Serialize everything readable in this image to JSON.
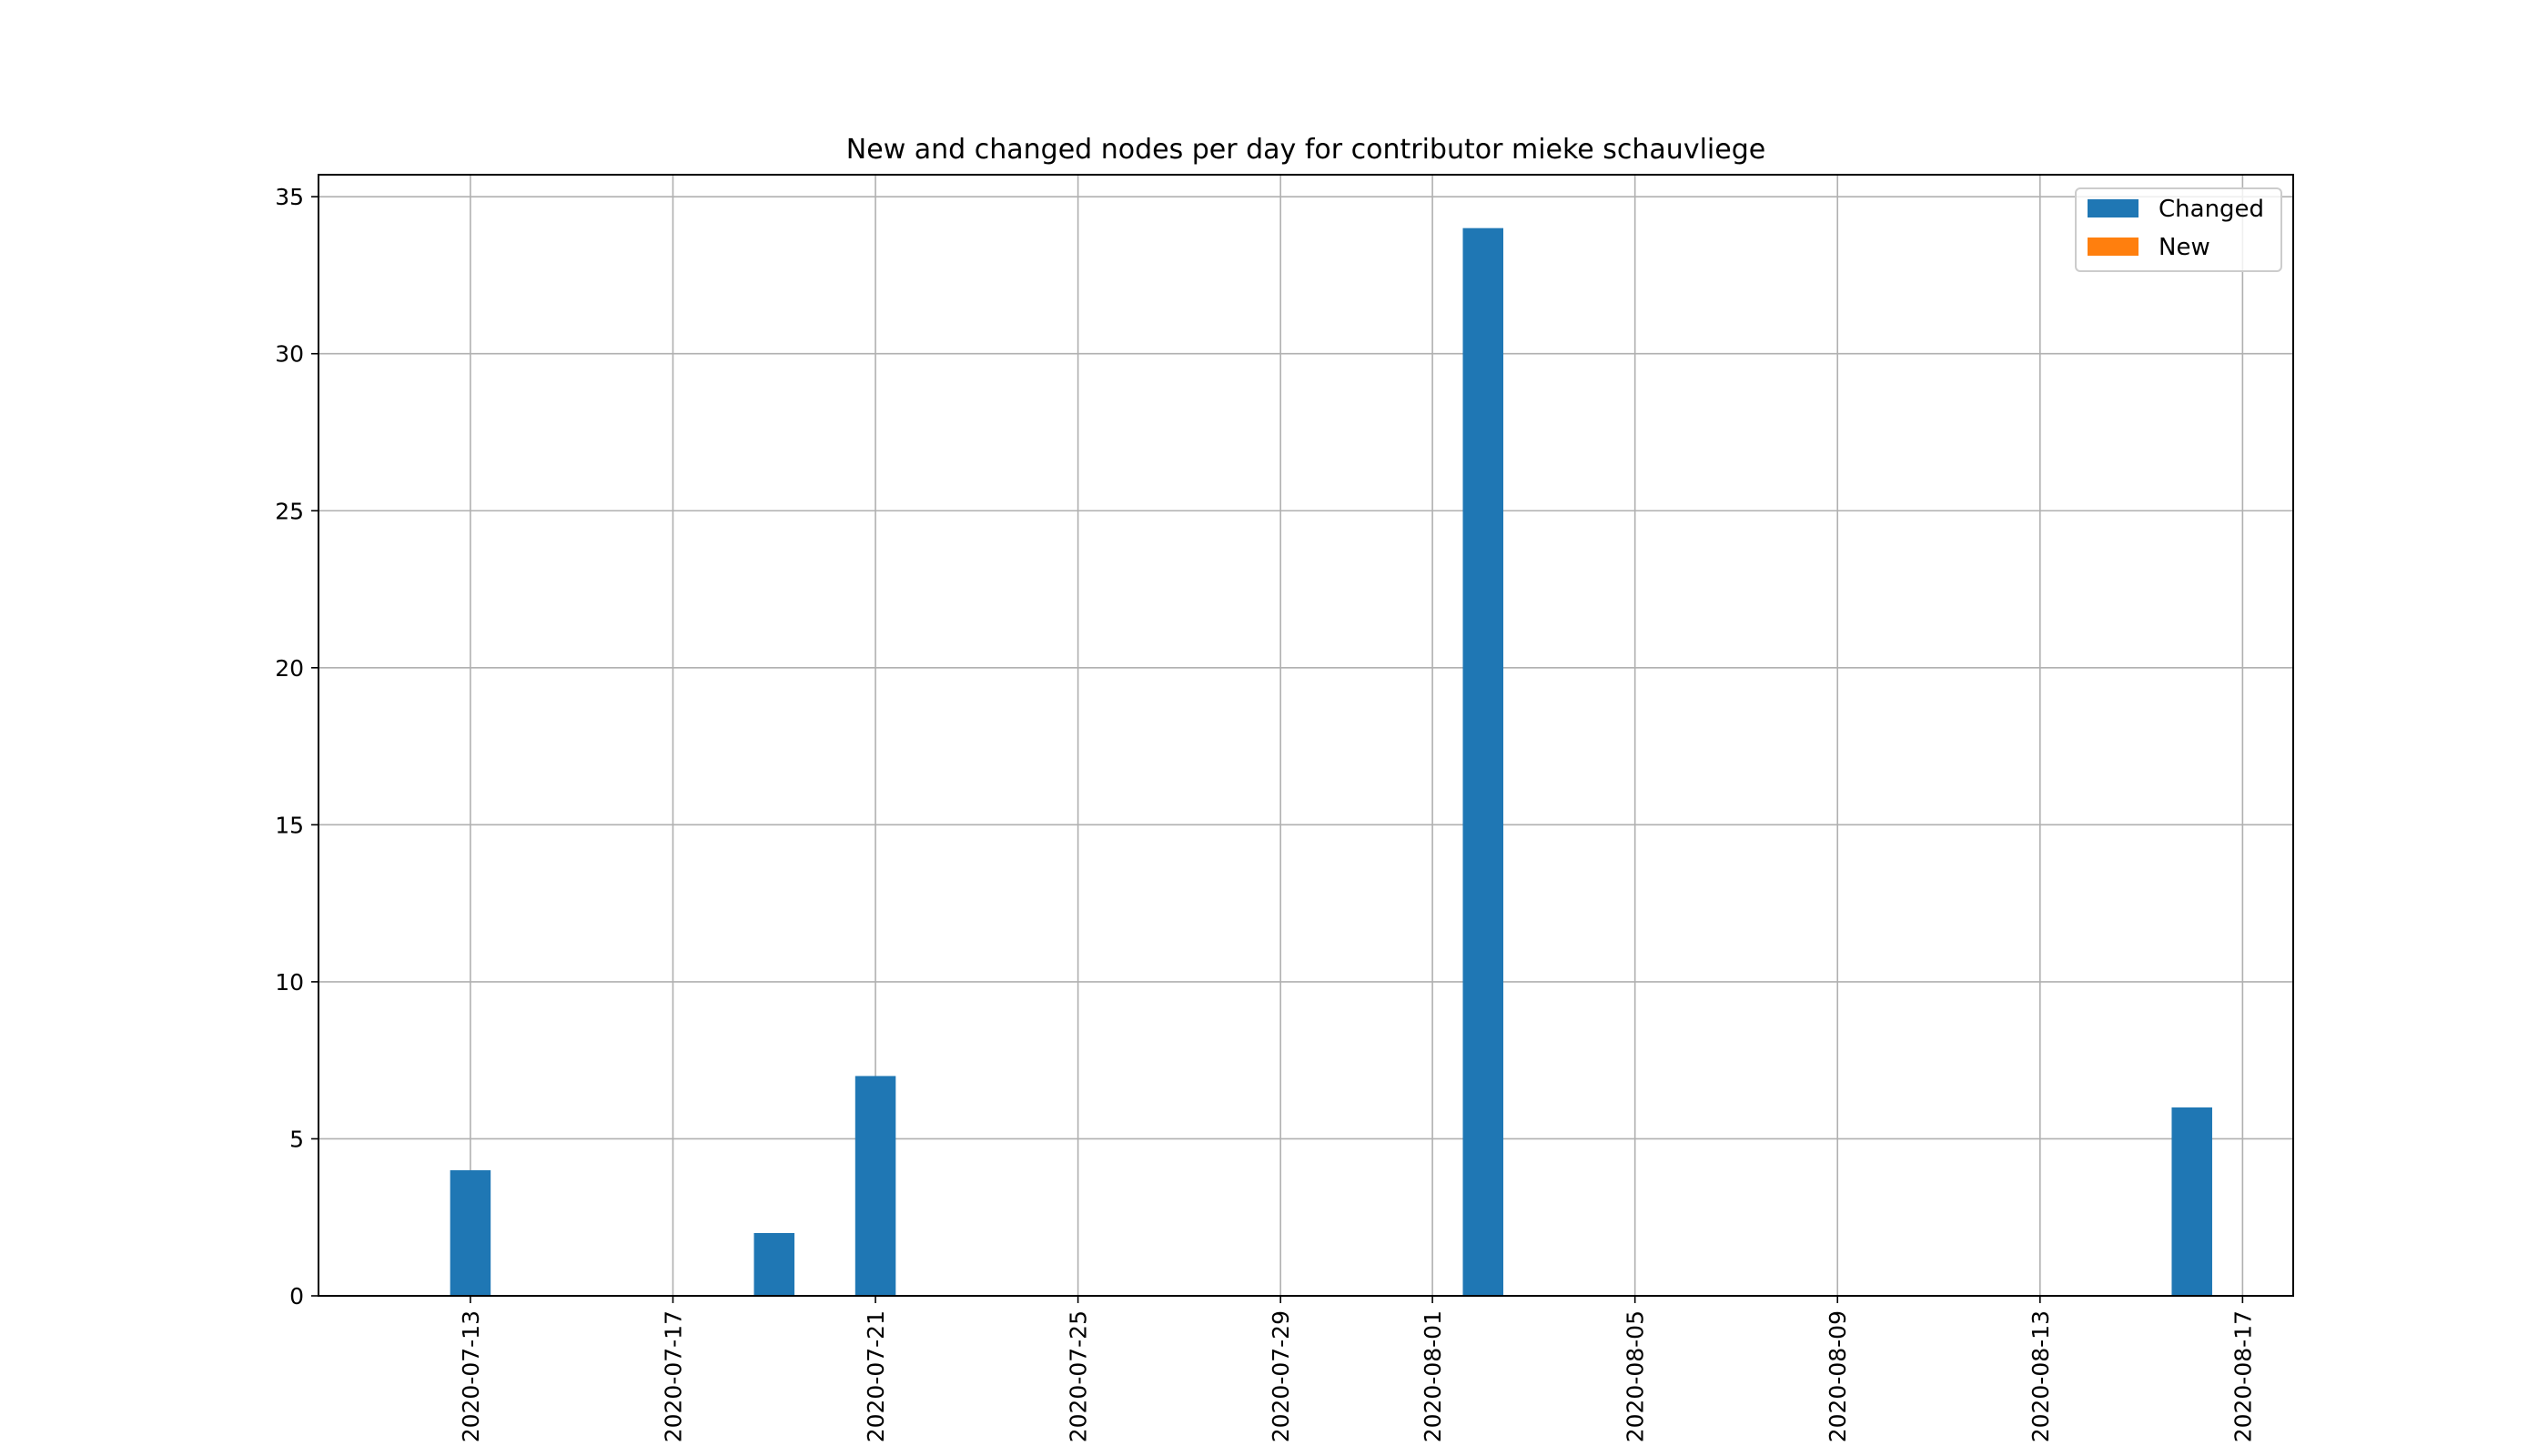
{
  "chart_data": {
    "type": "bar",
    "title": "New and changed nodes per day for contributor mieke schauvliege",
    "xlabel": "",
    "ylabel": "",
    "x_axis_type": "date",
    "xlim": [
      "2020-07-10",
      "2020-08-18"
    ],
    "ylim": [
      0,
      35.7
    ],
    "y_ticks": [
      0,
      5,
      10,
      15,
      20,
      25,
      30,
      35
    ],
    "x_ticks": [
      "2020-07-13",
      "2020-07-17",
      "2020-07-21",
      "2020-07-25",
      "2020-07-29",
      "2020-08-01",
      "2020-08-05",
      "2020-08-09",
      "2020-08-13",
      "2020-08-17"
    ],
    "grid": true,
    "legend_position": "top-right",
    "series": [
      {
        "name": "Changed",
        "color": "#1f77b4",
        "points": [
          {
            "date": "2020-07-13",
            "value": 4
          },
          {
            "date": "2020-07-19",
            "value": 2
          },
          {
            "date": "2020-07-21",
            "value": 7
          },
          {
            "date": "2020-08-02",
            "value": 34
          },
          {
            "date": "2020-08-16",
            "value": 6
          }
        ]
      },
      {
        "name": "New",
        "color": "#ff7f0e",
        "points": [
          {
            "date": "2020-07-13",
            "value": 0
          },
          {
            "date": "2020-07-19",
            "value": 0
          },
          {
            "date": "2020-07-21",
            "value": 0
          },
          {
            "date": "2020-08-02",
            "value": 0
          },
          {
            "date": "2020-08-16",
            "value": 0
          }
        ]
      }
    ]
  }
}
